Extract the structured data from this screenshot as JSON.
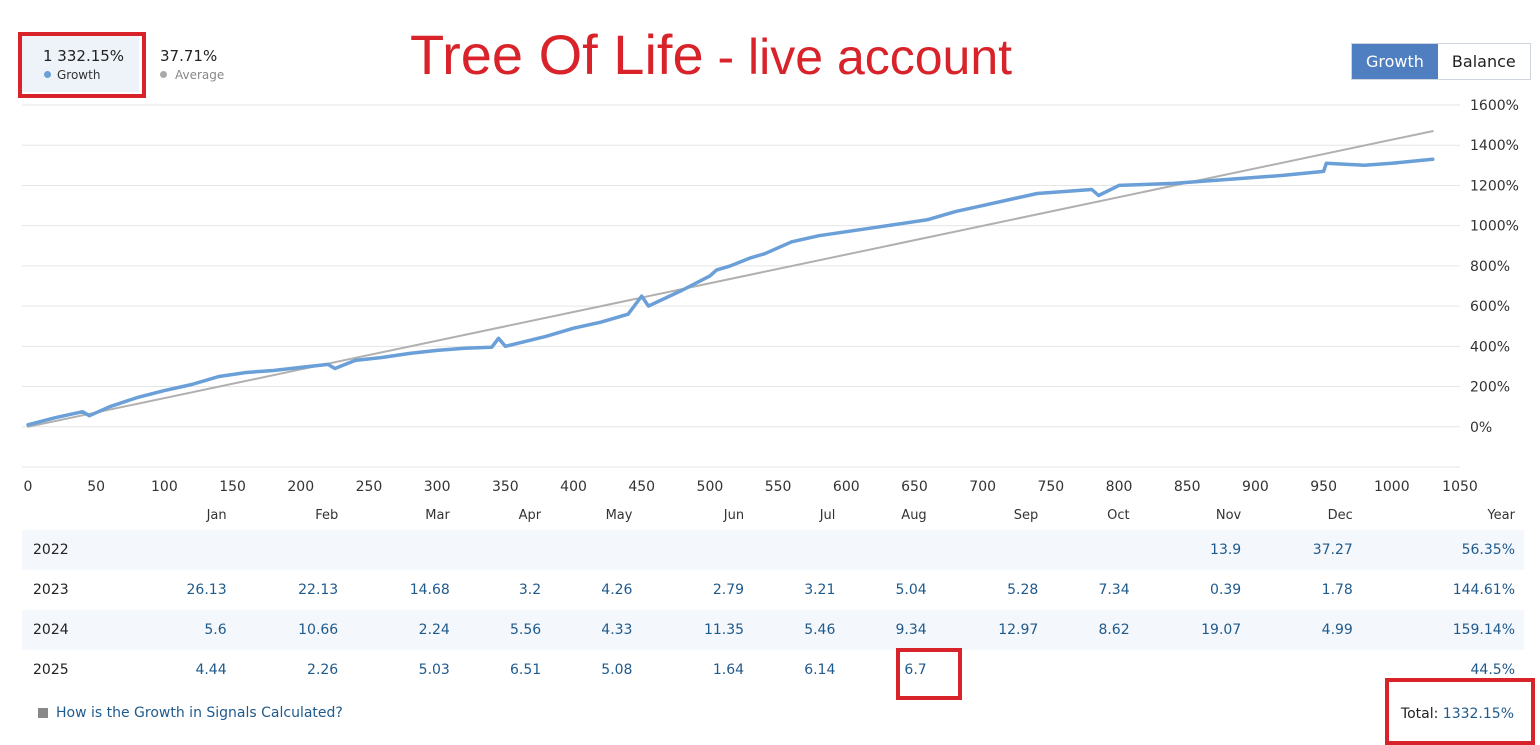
{
  "header": {
    "growth_value": "1 332.15%",
    "growth_label": "Growth",
    "average_value": "37.71%",
    "average_label": "Average",
    "title_part1": "Tree Of Life",
    "title_part2": " - live account",
    "toggle_growth": "Growth",
    "toggle_balance": "Balance"
  },
  "colors": {
    "growth_line": "#6a9fd8",
    "average_line": "#b0b0b0",
    "highlight": "#d8232a",
    "active_toggle": "#4f7fc0"
  },
  "chart_data": {
    "type": "line",
    "xlim": [
      0,
      1050
    ],
    "ylim": [
      -200,
      1600
    ],
    "x_ticks": [
      0,
      50,
      100,
      150,
      200,
      250,
      300,
      350,
      400,
      450,
      500,
      550,
      600,
      650,
      700,
      750,
      800,
      850,
      900,
      950,
      1000,
      1050
    ],
    "y_ticks": [
      0,
      200,
      400,
      600,
      800,
      1000,
      1200,
      1400,
      1600
    ],
    "y_tick_labels": [
      "0%",
      "200%",
      "400%",
      "600%",
      "800%",
      "1000%",
      "1200%",
      "1400%",
      "1600%"
    ],
    "grid": true,
    "series": [
      {
        "name": "Growth",
        "x": [
          0,
          20,
          40,
          45,
          60,
          80,
          100,
          120,
          140,
          160,
          180,
          200,
          220,
          225,
          240,
          260,
          280,
          300,
          320,
          340,
          345,
          350,
          380,
          400,
          420,
          440,
          450,
          455,
          480,
          500,
          505,
          515,
          530,
          540,
          560,
          580,
          600,
          620,
          640,
          660,
          680,
          700,
          720,
          740,
          780,
          785,
          800,
          840,
          880,
          920,
          950,
          952,
          980,
          1000,
          1030
        ],
        "values": [
          10,
          45,
          75,
          55,
          100,
          145,
          180,
          210,
          250,
          270,
          280,
          295,
          310,
          290,
          330,
          345,
          365,
          380,
          390,
          395,
          440,
          400,
          450,
          490,
          520,
          560,
          650,
          600,
          680,
          750,
          780,
          800,
          840,
          860,
          920,
          950,
          970,
          990,
          1010,
          1030,
          1070,
          1100,
          1130,
          1160,
          1180,
          1150,
          1200,
          1210,
          1230,
          1250,
          1270,
          1310,
          1300,
          1310,
          1330
        ]
      },
      {
        "name": "Average",
        "x": [
          0,
          1030
        ],
        "values": [
          0,
          1470
        ]
      }
    ]
  },
  "table": {
    "headers": [
      "Jan",
      "Feb",
      "Mar",
      "Apr",
      "May",
      "Jun",
      "Jul",
      "Aug",
      "Sep",
      "Oct",
      "Nov",
      "Dec",
      "Year"
    ],
    "rows": [
      {
        "year": "2022",
        "cells": [
          "",
          "",
          "",
          "",
          "",
          "",
          "",
          "",
          "",
          "",
          "13.9",
          "37.27",
          "56.35%"
        ]
      },
      {
        "year": "2023",
        "cells": [
          "26.13",
          "22.13",
          "14.68",
          "3.2",
          "4.26",
          "2.79",
          "3.21",
          "5.04",
          "5.28",
          "7.34",
          "0.39",
          "1.78",
          "144.61%"
        ]
      },
      {
        "year": "2024",
        "cells": [
          "5.6",
          "10.66",
          "2.24",
          "5.56",
          "4.33",
          "11.35",
          "5.46",
          "9.34",
          "12.97",
          "8.62",
          "19.07",
          "4.99",
          "159.14%"
        ]
      },
      {
        "year": "2025",
        "cells": [
          "4.44",
          "2.26",
          "5.03",
          "6.51",
          "5.08",
          "1.64",
          "6.14",
          "6.7",
          "",
          "",
          "",
          "",
          "44.5%"
        ]
      }
    ]
  },
  "footer": {
    "link_text": "How is the Growth in Signals Calculated?",
    "total_label": "Total:",
    "total_value": "1332.15%"
  }
}
